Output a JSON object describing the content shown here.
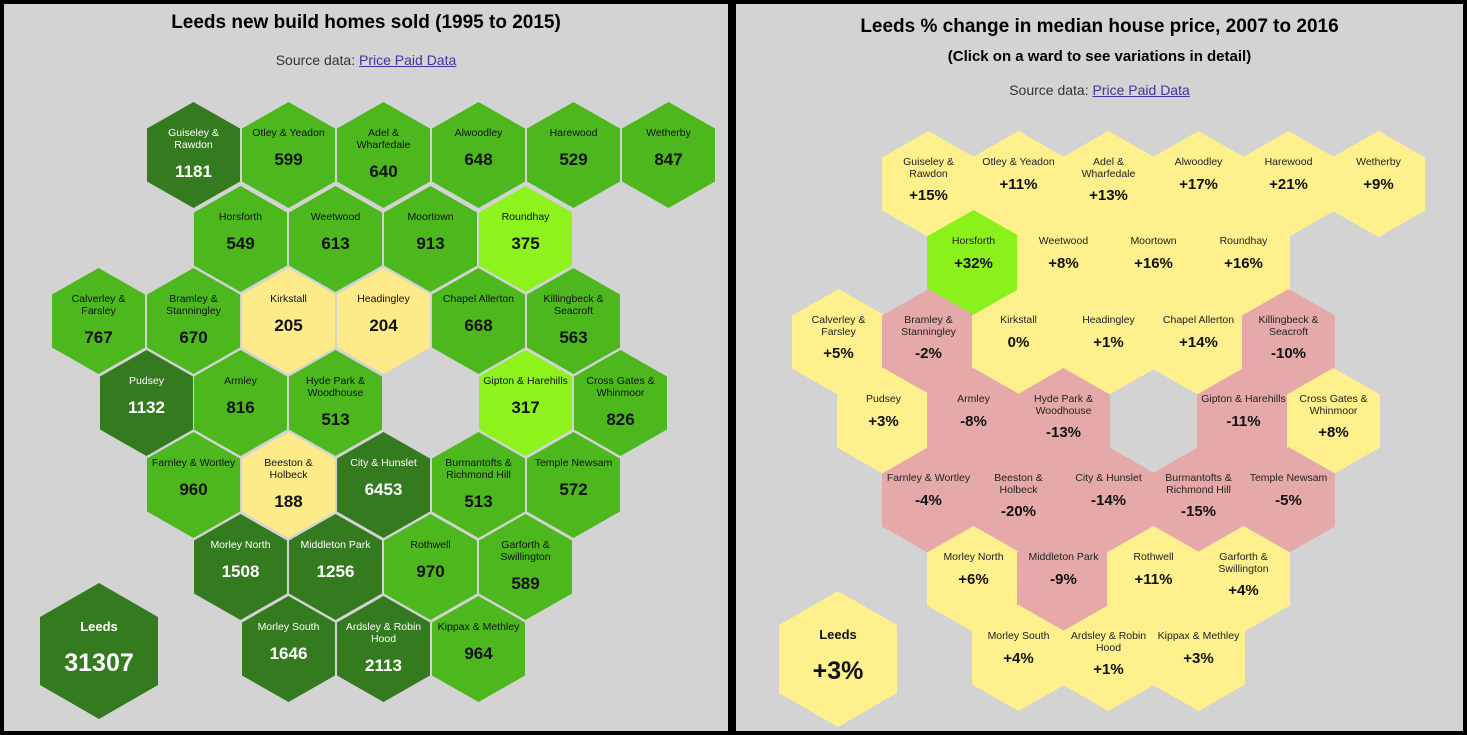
{
  "left": {
    "title": "Leeds new build homes sold (1995 to 2015)",
    "source_prefix": "Source data:",
    "source_link": "Price Paid Data",
    "leeds": {
      "name": "Leeds",
      "value": "31307"
    },
    "wards": [
      {
        "name": "Guiseley & Rawdon",
        "value": "1181",
        "color": "#347a1f"
      },
      {
        "name": "Otley & Yeadon",
        "value": "599",
        "color": "#4cb81e"
      },
      {
        "name": "Adel & Wharfedale",
        "value": "640",
        "color": "#4cb81e"
      },
      {
        "name": "Alwoodley",
        "value": "648",
        "color": "#4cb81e"
      },
      {
        "name": "Harewood",
        "value": "529",
        "color": "#4cb81e"
      },
      {
        "name": "Wetherby",
        "value": "847",
        "color": "#4cb81e"
      },
      {
        "name": "Horsforth",
        "value": "549",
        "color": "#4cb81e"
      },
      {
        "name": "Weetwood",
        "value": "613",
        "color": "#4cb81e"
      },
      {
        "name": "Moortown",
        "value": "913",
        "color": "#4cb81e"
      },
      {
        "name": "Roundhay",
        "value": "375",
        "color": "#8ef21d"
      },
      {
        "name": "Calverley & Farsley",
        "value": "767",
        "color": "#4cb81e"
      },
      {
        "name": "Bramley & Stanningley",
        "value": "670",
        "color": "#4cb81e"
      },
      {
        "name": "Kirkstall",
        "value": "205",
        "color": "#fdeb8a"
      },
      {
        "name": "Headingley",
        "value": "204",
        "color": "#fdeb8a"
      },
      {
        "name": "Chapel Allerton",
        "value": "668",
        "color": "#4cb81e"
      },
      {
        "name": "Killingbeck & Seacroft",
        "value": "563",
        "color": "#4cb81e"
      },
      {
        "name": "Pudsey",
        "value": "1132",
        "color": "#347a1f"
      },
      {
        "name": "Armley",
        "value": "816",
        "color": "#4cb81e"
      },
      {
        "name": "Hyde Park & Woodhouse",
        "value": "513",
        "color": "#4cb81e"
      },
      {
        "name": "Gipton & Harehills",
        "value": "317",
        "color": "#8ef21d"
      },
      {
        "name": "Cross Gates & Whinmoor",
        "value": "826",
        "color": "#4cb81e"
      },
      {
        "name": "Farnley & Wortley",
        "value": "960",
        "color": "#4cb81e"
      },
      {
        "name": "Beeston & Holbeck",
        "value": "188",
        "color": "#fdeb8a"
      },
      {
        "name": "City & Hunslet",
        "value": "6453",
        "color": "#347a1f"
      },
      {
        "name": "Burmantofts & Richmond Hill",
        "value": "513",
        "color": "#4cb81e"
      },
      {
        "name": "Temple Newsam",
        "value": "572",
        "color": "#4cb81e"
      },
      {
        "name": "Morley North",
        "value": "1508",
        "color": "#347a1f"
      },
      {
        "name": "Middleton Park",
        "value": "1256",
        "color": "#347a1f"
      },
      {
        "name": "Rothwell",
        "value": "970",
        "color": "#4cb81e"
      },
      {
        "name": "Garforth & Swillington",
        "value": "589",
        "color": "#4cb81e"
      },
      {
        "name": "Morley South",
        "value": "1646",
        "color": "#347a1f"
      },
      {
        "name": "Ardsley & Robin Hood",
        "value": "2113",
        "color": "#347a1f"
      },
      {
        "name": "Kippax & Methley",
        "value": "964",
        "color": "#4cb81e"
      }
    ]
  },
  "right": {
    "title": "Leeds % change in median house price, 2007 to 2016",
    "subtitle": "(Click on a ward to see variations in detail)",
    "source_prefix": "Source data:",
    "source_link": "Price Paid Data",
    "leeds": {
      "name": "Leeds",
      "value": "+3%"
    },
    "wards": [
      {
        "name": "Guiseley & Rawdon",
        "value": "+15%",
        "color": "#fef08c"
      },
      {
        "name": "Otley & Yeadon",
        "value": "+11%",
        "color": "#fef08c"
      },
      {
        "name": "Adel & Wharfedale",
        "value": "+13%",
        "color": "#fef08c"
      },
      {
        "name": "Alwoodley",
        "value": "+17%",
        "color": "#fef08c"
      },
      {
        "name": "Harewood",
        "value": "+21%",
        "color": "#fef08c"
      },
      {
        "name": "Wetherby",
        "value": "+9%",
        "color": "#fef08c"
      },
      {
        "name": "Horsforth",
        "value": "+32%",
        "color": "#8af11b"
      },
      {
        "name": "Weetwood",
        "value": "+8%",
        "color": "#fef08c"
      },
      {
        "name": "Moortown",
        "value": "+16%",
        "color": "#fef08c"
      },
      {
        "name": "Roundhay",
        "value": "+16%",
        "color": "#fef08c"
      },
      {
        "name": "Calverley & Farsley",
        "value": "+5%",
        "color": "#fef08c"
      },
      {
        "name": "Bramley & Stanningley",
        "value": "-2%",
        "color": "#e6a9a9"
      },
      {
        "name": "Kirkstall",
        "value": "0%",
        "color": "#fef08c"
      },
      {
        "name": "Headingley",
        "value": "+1%",
        "color": "#fef08c"
      },
      {
        "name": "Chapel Allerton",
        "value": "+14%",
        "color": "#fef08c"
      },
      {
        "name": "Killingbeck & Seacroft",
        "value": "-10%",
        "color": "#e6a9a9"
      },
      {
        "name": "Pudsey",
        "value": "+3%",
        "color": "#fef08c"
      },
      {
        "name": "Armley",
        "value": "-8%",
        "color": "#e6a9a9"
      },
      {
        "name": "Hyde Park & Woodhouse",
        "value": "-13%",
        "color": "#e6a9a9"
      },
      {
        "name": "Gipton & Harehills",
        "value": "-11%",
        "color": "#e6a9a9"
      },
      {
        "name": "Cross Gates & Whinmoor",
        "value": "+8%",
        "color": "#fef08c"
      },
      {
        "name": "Farnley & Wortley",
        "value": "-4%",
        "color": "#e6a9a9"
      },
      {
        "name": "Beeston & Holbeck",
        "value": "-20%",
        "color": "#e6a9a9"
      },
      {
        "name": "City & Hunslet",
        "value": "-14%",
        "color": "#e6a9a9"
      },
      {
        "name": "Burmantofts & Richmond Hill",
        "value": "-15%",
        "color": "#e6a9a9"
      },
      {
        "name": "Temple Newsam",
        "value": "-5%",
        "color": "#e6a9a9"
      },
      {
        "name": "Morley North",
        "value": "+6%",
        "color": "#fef08c"
      },
      {
        "name": "Middleton Park",
        "value": "-9%",
        "color": "#e6a9a9"
      },
      {
        "name": "Rothwell",
        "value": "+11%",
        "color": "#fef08c"
      },
      {
        "name": "Garforth & Swillington",
        "value": "+4%",
        "color": "#fef08c"
      },
      {
        "name": "Morley South",
        "value": "+4%",
        "color": "#fef08c"
      },
      {
        "name": "Ardsley & Robin Hood",
        "value": "+1%",
        "color": "#fef08c"
      },
      {
        "name": "Kippax & Methley",
        "value": "+3%",
        "color": "#fef08c"
      }
    ]
  }
}
